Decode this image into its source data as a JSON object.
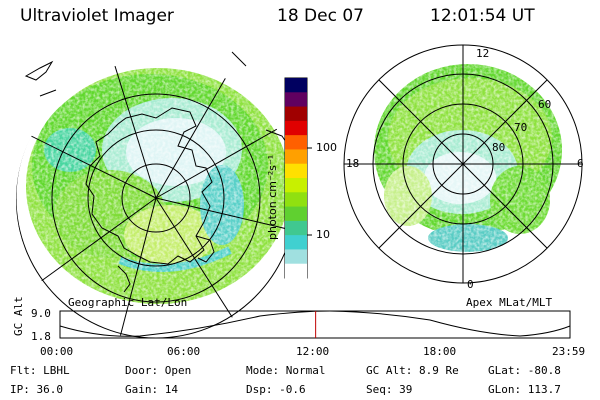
{
  "header": {
    "instrument": "Ultraviolet Imager",
    "date": "18 Dec 07",
    "time": "12:01:54 UT"
  },
  "left_map": {
    "caption": "Geographic Lat/Lon"
  },
  "right_map": {
    "caption": "Apex MLat/MLT",
    "mlt_labels": {
      "top": "12",
      "left": "18",
      "right": "6",
      "bottom": "0"
    },
    "lat_labels": [
      "60",
      "70",
      "80"
    ]
  },
  "colorbar": {
    "label": "photon cm⁻²s⁻¹",
    "ticks": [
      "100",
      "10"
    ],
    "colors": [
      "#000060",
      "#600060",
      "#a00000",
      "#e00000",
      "#ff6000",
      "#ffa000",
      "#ffe000",
      "#c8f000",
      "#90e010",
      "#60d030",
      "#40c890",
      "#40d0d0",
      "#a0e0e0",
      "#ffffff"
    ]
  },
  "altitude_plot": {
    "ylabel": "GC Alt",
    "y_ticks": [
      "9.0",
      "1.8"
    ],
    "x_ticks": [
      "00:00",
      "06:00",
      "12:00",
      "18:00",
      "23:59"
    ],
    "marker_time_hours": 12.03
  },
  "status": {
    "row1": [
      {
        "label": "Flt:",
        "value": "LBHL"
      },
      {
        "label": "Door:",
        "value": "Open"
      },
      {
        "label": "Mode:",
        "value": "Normal"
      },
      {
        "label": "GC Alt:",
        "value": "8.9 Re"
      },
      {
        "label": "GLat:",
        "value": "-80.8"
      }
    ],
    "row2": [
      {
        "label": "IP:",
        "value": "36.0"
      },
      {
        "label": "Gain:",
        "value": "14"
      },
      {
        "label": "Dsp:",
        "value": "-0.6"
      },
      {
        "label": "Seq:",
        "value": "39"
      },
      {
        "label": "GLon:",
        "value": "113.7"
      }
    ]
  }
}
